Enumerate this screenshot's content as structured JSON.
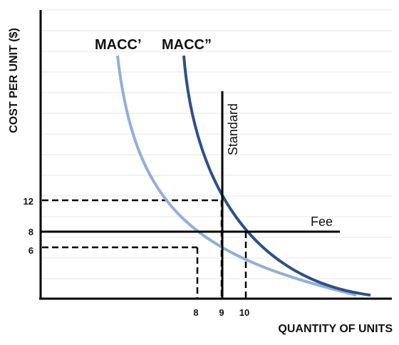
{
  "chart_data": {
    "type": "line",
    "xlabel": "QUANTITY OF UNITS",
    "ylabel": "COST PER UNIT ($)",
    "x_ticks": [
      "8",
      "9",
      "10"
    ],
    "y_ticks": [
      "12",
      "8",
      "6"
    ],
    "grid": true,
    "series": [
      {
        "name": "MACC’",
        "color": "#93aed8"
      },
      {
        "name": "MACC”",
        "color": "#2f4f86"
      }
    ],
    "standard": {
      "label": "Standard",
      "x": 9
    },
    "fee": {
      "label": "Fee",
      "y": 8
    },
    "guides": [
      {
        "x": 8,
        "y": 6
      },
      {
        "x": 9,
        "y": 12
      },
      {
        "x": 10,
        "y": 8
      }
    ]
  }
}
